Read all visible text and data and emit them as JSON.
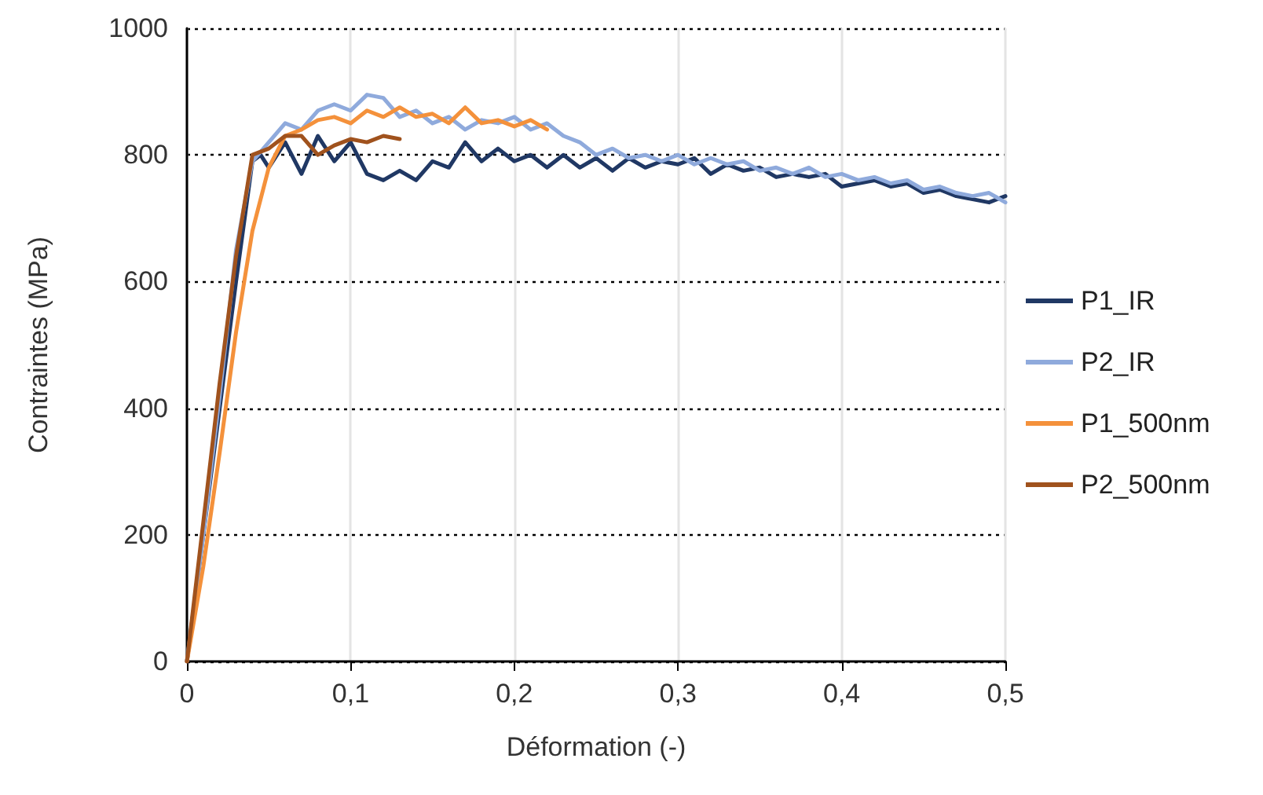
{
  "chart_data": {
    "type": "line",
    "xlabel": "Déformation (-)",
    "ylabel": "Contraintes (MPa)",
    "xlim": [
      0,
      0.5
    ],
    "ylim": [
      0,
      1000
    ],
    "xticks": [
      0,
      {
        "value": 0.1,
        "label": "0,1"
      },
      {
        "value": 0.2,
        "label": "0,2"
      },
      {
        "value": 0.3,
        "label": "0,3"
      },
      {
        "value": 0.4,
        "label": "0,4"
      },
      {
        "value": 0.5,
        "label": "0,5"
      }
    ],
    "yticks": [
      0,
      200,
      400,
      600,
      800,
      1000
    ],
    "grid": true,
    "legend": "right",
    "marker": "none",
    "line_style": "solid",
    "series": [
      {
        "name": "P1_IR",
        "color": "#203864",
        "x": [
          0,
          0.01,
          0.02,
          0.03,
          0.04,
          0.045,
          0.05,
          0.06,
          0.07,
          0.08,
          0.09,
          0.1,
          0.11,
          0.12,
          0.13,
          0.14,
          0.15,
          0.16,
          0.17,
          0.18,
          0.19,
          0.2,
          0.21,
          0.22,
          0.23,
          0.24,
          0.25,
          0.26,
          0.27,
          0.28,
          0.29,
          0.3,
          0.31,
          0.32,
          0.33,
          0.34,
          0.35,
          0.36,
          0.37,
          0.38,
          0.39,
          0.4,
          0.41,
          0.42,
          0.43,
          0.44,
          0.45,
          0.46,
          0.47,
          0.48,
          0.49,
          0.5
        ],
        "values": [
          0,
          200,
          400,
          600,
          790,
          800,
          780,
          820,
          770,
          830,
          790,
          820,
          770,
          760,
          775,
          760,
          790,
          780,
          820,
          790,
          810,
          790,
          800,
          780,
          800,
          780,
          795,
          775,
          795,
          780,
          790,
          785,
          795,
          770,
          785,
          775,
          780,
          765,
          770,
          765,
          770,
          750,
          755,
          760,
          750,
          755,
          740,
          745,
          735,
          730,
          725,
          735
        ]
      },
      {
        "name": "P2_IR",
        "color": "#8faadc",
        "x": [
          0,
          0.01,
          0.02,
          0.03,
          0.04,
          0.05,
          0.06,
          0.07,
          0.08,
          0.09,
          0.1,
          0.11,
          0.12,
          0.13,
          0.14,
          0.15,
          0.16,
          0.17,
          0.18,
          0.19,
          0.2,
          0.21,
          0.22,
          0.23,
          0.24,
          0.25,
          0.26,
          0.27,
          0.28,
          0.29,
          0.3,
          0.31,
          0.32,
          0.33,
          0.34,
          0.35,
          0.36,
          0.37,
          0.38,
          0.39,
          0.4,
          0.41,
          0.42,
          0.43,
          0.44,
          0.45,
          0.46,
          0.47,
          0.48,
          0.49,
          0.5
        ],
        "values": [
          0,
          200,
          420,
          650,
          790,
          820,
          850,
          840,
          870,
          880,
          870,
          895,
          890,
          860,
          870,
          850,
          860,
          840,
          855,
          850,
          860,
          840,
          850,
          830,
          820,
          800,
          810,
          795,
          800,
          790,
          800,
          785,
          795,
          785,
          790,
          775,
          780,
          770,
          780,
          765,
          770,
          760,
          765,
          755,
          760,
          745,
          750,
          740,
          735,
          740,
          725
        ]
      },
      {
        "name": "P1_500nm",
        "color": "#f4913b",
        "x": [
          0,
          0.01,
          0.02,
          0.03,
          0.04,
          0.05,
          0.06,
          0.07,
          0.08,
          0.09,
          0.1,
          0.11,
          0.12,
          0.13,
          0.14,
          0.15,
          0.16,
          0.17,
          0.18,
          0.19,
          0.2,
          0.21,
          0.22
        ],
        "values": [
          0,
          150,
          330,
          520,
          680,
          780,
          830,
          840,
          855,
          860,
          850,
          870,
          860,
          875,
          860,
          865,
          850,
          875,
          850,
          855,
          845,
          855,
          840
        ]
      },
      {
        "name": "P2_500nm",
        "color": "#a0521d",
        "x": [
          0,
          0.01,
          0.02,
          0.03,
          0.04,
          0.05,
          0.06,
          0.07,
          0.08,
          0.09,
          0.1,
          0.11,
          0.12,
          0.13
        ],
        "values": [
          0,
          220,
          440,
          640,
          800,
          810,
          830,
          830,
          800,
          815,
          825,
          820,
          830,
          825
        ]
      }
    ]
  }
}
